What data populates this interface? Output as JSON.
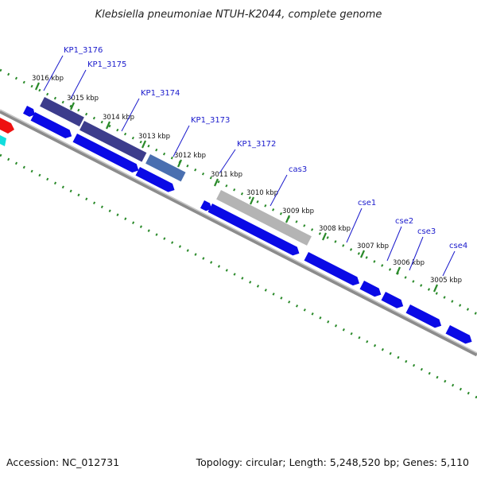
{
  "header": {
    "title": "Klebsiella pneumoniae NTUH-K2044, complete genome"
  },
  "footer": {
    "accession": "Accession: NC_012731",
    "summary": "Topology: circular; Length: 5,248,520 bp; Genes: 5,110"
  },
  "scale_ticks": [
    "3016 kbp",
    "3015 kbp",
    "3014 kbp",
    "3013 kbp",
    "3012 kbp",
    "3011 kbp",
    "3010 kbp",
    "3009 kbp",
    "3008 kbp",
    "3007 kbp",
    "3006 kbp",
    "3005 kbp"
  ],
  "gene_labels": [
    "KP1_3176",
    "KP1_3175",
    "KP1_3174",
    "KP1_3173",
    "KP1_3172",
    "cas3",
    "cse1",
    "cse2",
    "cse3",
    "cse4"
  ],
  "colors": {
    "cds": "#0a0ae6",
    "selected_dark": "#3c3c8c",
    "selected_mid": "#4a6fb0",
    "selected_gray": "#b4b4b4",
    "backbone": "#8c8c8c",
    "dots": "#2a8a2a",
    "red_feature": "#ee1111",
    "cyan_feature": "#11dddd",
    "label": "#1a1acc"
  }
}
